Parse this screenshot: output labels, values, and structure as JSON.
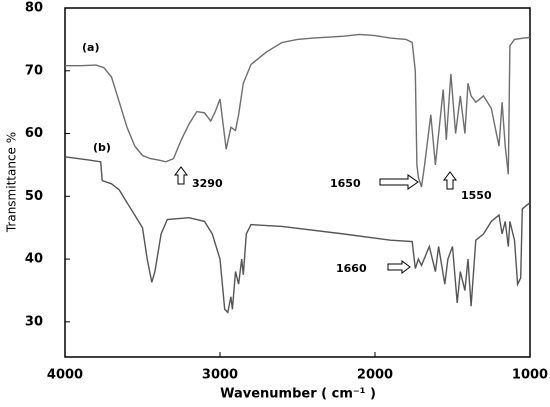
{
  "chart_data": {
    "type": "line",
    "xlabel": "Wavenumber ( cm⁻¹ )",
    "ylabel": "Transmittance %",
    "xlim": [
      4000,
      1000
    ],
    "ylim": [
      24.4,
      80
    ],
    "xticks": [
      4000,
      3000,
      2000,
      1000
    ],
    "yticks": [
      30,
      40,
      50,
      60,
      70,
      80
    ],
    "annotations": [
      "(a)",
      "(b)",
      "3290",
      "1650",
      "1550",
      "1660"
    ],
    "series": [
      {
        "name": "(a)",
        "color": "#6e6e6e",
        "x": [
          4000,
          3900,
          3800,
          3750,
          3700,
          3650,
          3600,
          3550,
          3500,
          3450,
          3400,
          3350,
          3300,
          3250,
          3200,
          3150,
          3100,
          3060,
          3030,
          3000,
          2960,
          2930,
          2900,
          2880,
          2850,
          2800,
          2700,
          2600,
          2500,
          2400,
          2200,
          2100,
          2000,
          1900,
          1800,
          1760,
          1740,
          1730,
          1720,
          1700,
          1680,
          1640,
          1610,
          1560,
          1540,
          1510,
          1480,
          1450,
          1420,
          1400,
          1380,
          1350,
          1300,
          1250,
          1200,
          1180,
          1160,
          1140,
          1130,
          1100,
          1040,
          1000
        ],
        "values": [
          70.8,
          70.8,
          70.9,
          70.5,
          69,
          65,
          61,
          58,
          56.5,
          56,
          55.8,
          55.5,
          56,
          59,
          61.5,
          63.5,
          63.3,
          62,
          63.5,
          65.5,
          57.5,
          61,
          60.5,
          63,
          68,
          71,
          73,
          74.5,
          75,
          75.2,
          75.5,
          75.8,
          75.6,
          75.2,
          75,
          74.5,
          70,
          55,
          53,
          51.5,
          55,
          63,
          55,
          67,
          59,
          69.5,
          60,
          66,
          60,
          68,
          66,
          65,
          66,
          64,
          58,
          65,
          58,
          53.5,
          74,
          75,
          75.2,
          75.3
        ]
      },
      {
        "name": "(b)",
        "color": "#555555",
        "x": [
          4000,
          3850,
          3770,
          3760,
          3700,
          3650,
          3600,
          3550,
          3500,
          3470,
          3440,
          3420,
          3380,
          3340,
          3200,
          3100,
          3050,
          3000,
          2970,
          2950,
          2930,
          2920,
          2900,
          2880,
          2860,
          2850,
          2830,
          2800,
          2600,
          2200,
          1900,
          1760,
          1740,
          1720,
          1700,
          1650,
          1610,
          1590,
          1550,
          1530,
          1500,
          1470,
          1450,
          1420,
          1400,
          1380,
          1350,
          1300,
          1250,
          1200,
          1180,
          1160,
          1140,
          1130,
          1100,
          1080,
          1060,
          1050,
          1000
        ],
        "values": [
          56.3,
          55.8,
          55.5,
          52.5,
          52,
          51,
          49,
          47,
          45,
          40,
          36.3,
          38,
          44,
          46.3,
          46.6,
          46,
          44,
          40,
          32,
          31.5,
          34,
          32,
          38,
          36,
          40,
          37.5,
          44,
          45.5,
          45.2,
          44,
          43,
          42.8,
          38.5,
          40,
          39,
          42,
          38,
          42,
          36,
          40,
          42,
          33,
          38,
          35,
          40,
          32.5,
          43,
          44,
          46,
          47,
          44,
          46,
          42,
          46,
          43,
          36,
          37,
          48,
          49
        ]
      }
    ]
  }
}
